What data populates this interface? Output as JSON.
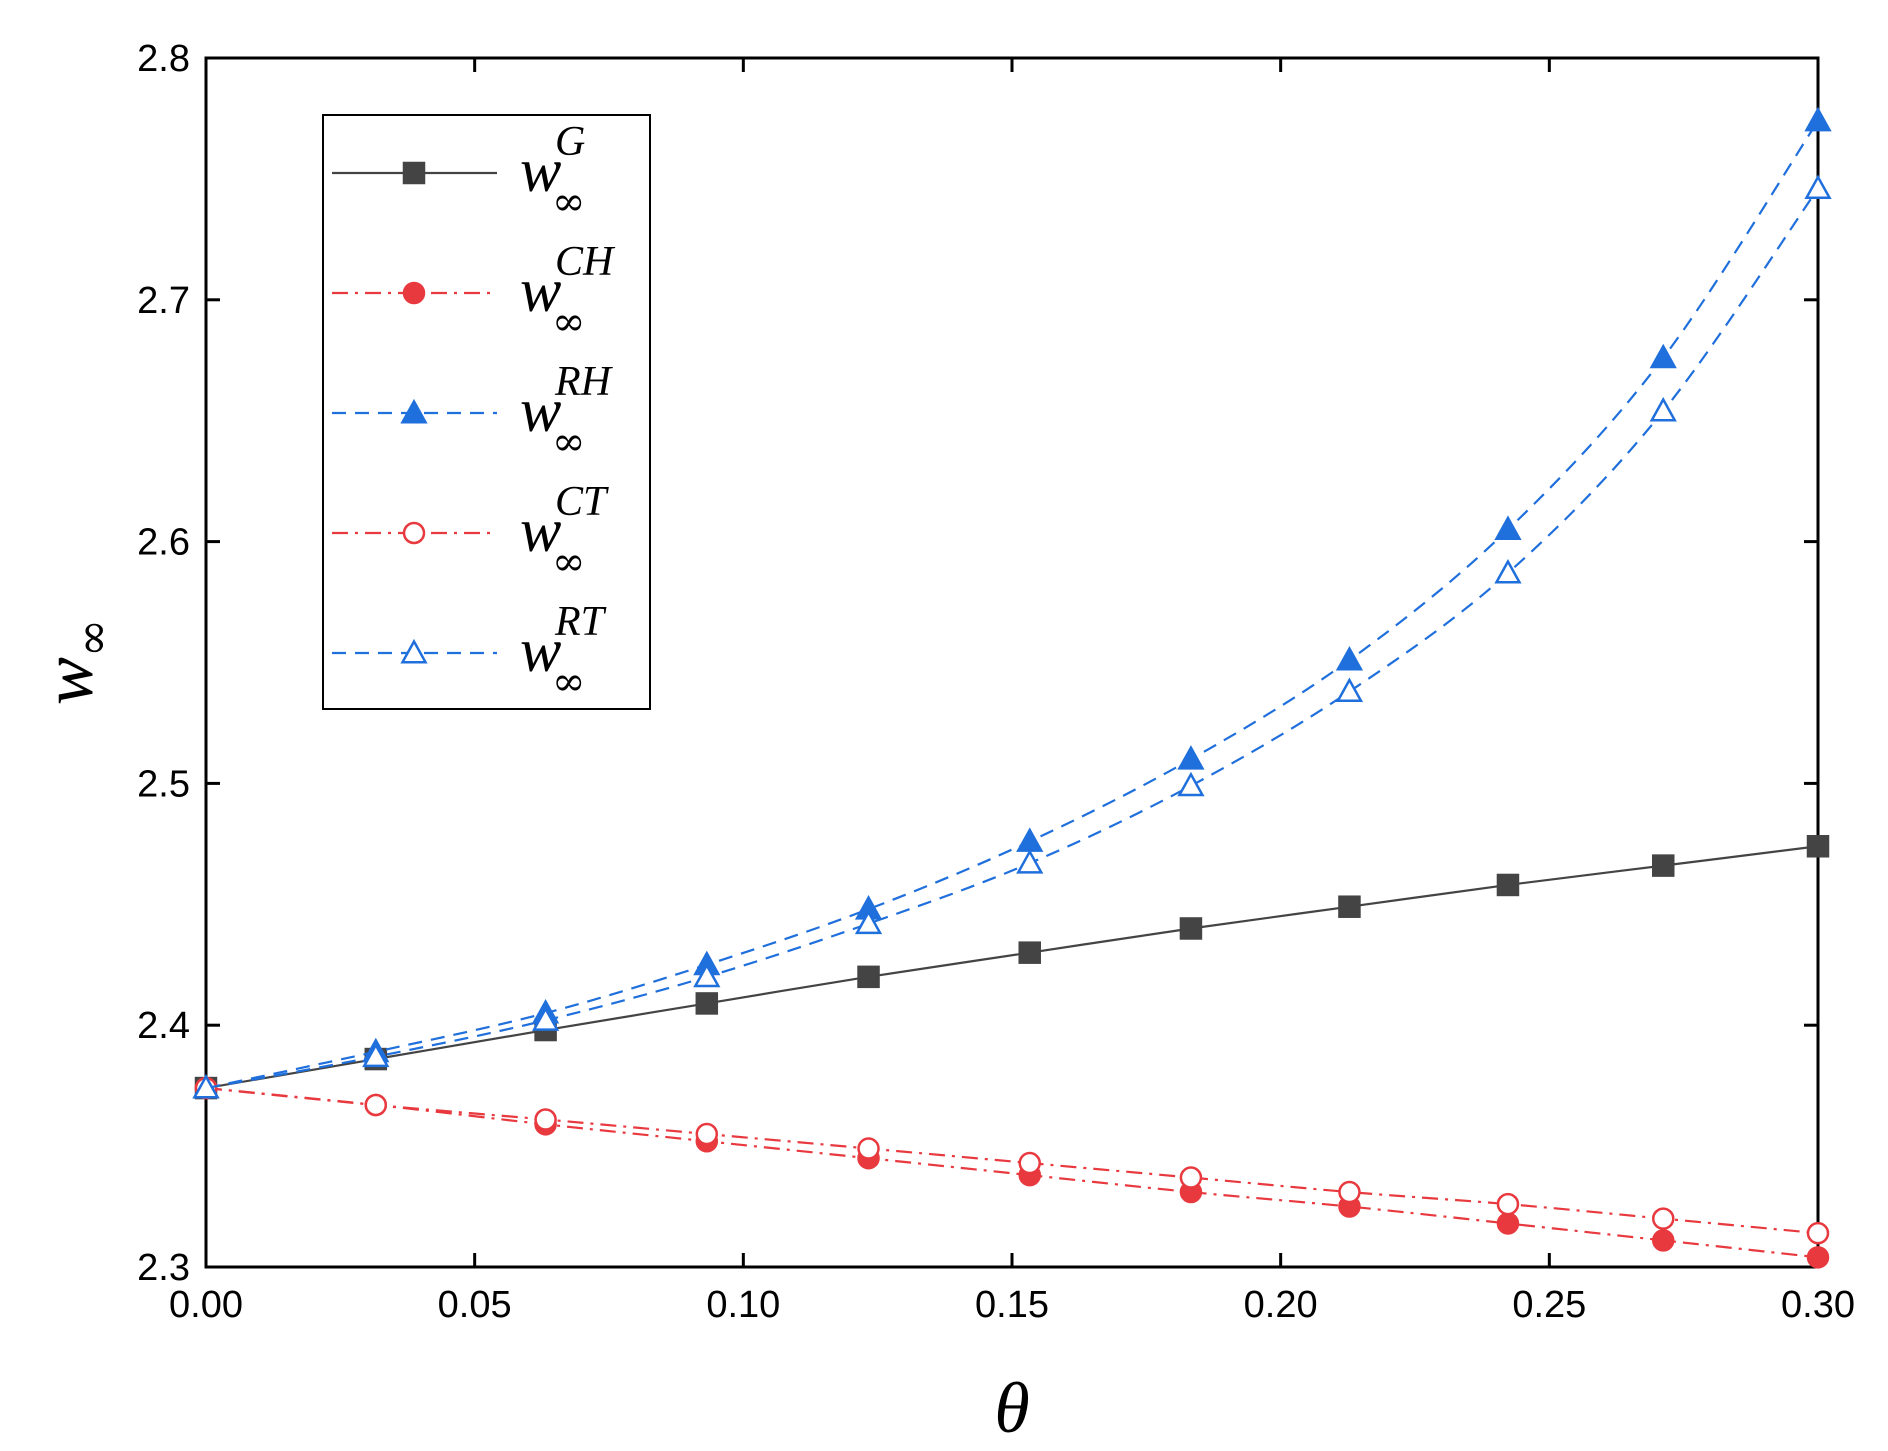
{
  "chart_data": {
    "type": "line",
    "title": "",
    "xlabel": "θ",
    "ylabel": "w",
    "ylabel_subscript": "∞",
    "xlim": [
      0.0,
      0.3
    ],
    "ylim": [
      2.3,
      2.8
    ],
    "xticks": [
      "0.00",
      "0.05",
      "0.10",
      "0.15",
      "0.20",
      "0.25",
      "0.30"
    ],
    "yticks": [
      "2.3",
      "2.4",
      "2.5",
      "2.6",
      "2.7",
      "2.8"
    ],
    "legend_position": "top-left",
    "x": [
      0.0,
      0.0316,
      0.0632,
      0.0932,
      0.1233,
      0.1533,
      0.1833,
      0.2128,
      0.2423,
      0.2712,
      0.3
    ],
    "series": [
      {
        "name": "w_∞^G",
        "label_base": "w",
        "label_sup": "G",
        "label_sub": "∞",
        "color": "#444444",
        "line": "solid",
        "marker": "square",
        "filled": true,
        "values": [
          2.374,
          2.386,
          2.398,
          2.409,
          2.42,
          2.43,
          2.44,
          2.449,
          2.458,
          2.466,
          2.474
        ]
      },
      {
        "name": "w_∞^CH",
        "label_base": "w",
        "label_sup": "CH",
        "label_sub": "∞",
        "color": "#e8393f",
        "line": "dashdot",
        "marker": "circle",
        "filled": true,
        "values": [
          2.374,
          2.367,
          2.359,
          2.352,
          2.345,
          2.338,
          2.331,
          2.325,
          2.318,
          2.311,
          2.304
        ]
      },
      {
        "name": "w_∞^RH",
        "label_base": "w",
        "label_sup": "RH",
        "label_sub": "∞",
        "color": "#1f6fdc",
        "line": "dashed",
        "marker": "triangle",
        "filled": true,
        "values": [
          2.374,
          2.389,
          2.405,
          2.425,
          2.448,
          2.476,
          2.51,
          2.551,
          2.605,
          2.676,
          2.774
        ]
      },
      {
        "name": "w_∞^CT",
        "label_base": "w",
        "label_sup": "CT",
        "label_sub": "∞",
        "color": "#e8393f",
        "line": "dashdot",
        "marker": "circle",
        "filled": false,
        "values": [
          2.374,
          2.367,
          2.361,
          2.355,
          2.349,
          2.343,
          2.337,
          2.331,
          2.326,
          2.32,
          2.314
        ]
      },
      {
        "name": "w_∞^RT",
        "label_base": "w",
        "label_sup": "RT",
        "label_sub": "∞",
        "color": "#1f6fdc",
        "line": "dashed",
        "marker": "triangle",
        "filled": false,
        "values": [
          2.374,
          2.387,
          2.402,
          2.42,
          2.442,
          2.467,
          2.499,
          2.538,
          2.587,
          2.654,
          2.746
        ]
      }
    ]
  }
}
